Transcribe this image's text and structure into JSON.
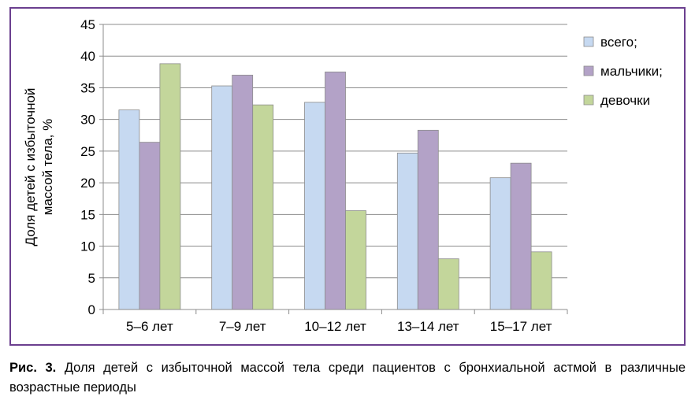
{
  "chart_data": {
    "type": "bar",
    "categories": [
      "5–6 лет",
      "7–9 лет",
      "10–12 лет",
      "13–14 лет",
      "15–17 лет"
    ],
    "series": [
      {
        "name": "всего;",
        "values": [
          31.5,
          35.3,
          32.7,
          24.7,
          20.8
        ],
        "color": "#c6d9f1"
      },
      {
        "name": "мальчики;",
        "values": [
          26.4,
          37.0,
          37.5,
          28.3,
          23.1
        ],
        "color": "#b3a2c7"
      },
      {
        "name": "девочки",
        "values": [
          38.8,
          32.3,
          15.6,
          8.0,
          9.1
        ],
        "color": "#c3d69b"
      }
    ],
    "ylabel": [
      "Доля детей с избыточной",
      "массой тела, %"
    ],
    "ylim": [
      0,
      45
    ],
    "yticks": [
      0,
      5,
      10,
      15,
      20,
      25,
      30,
      35,
      40,
      45
    ],
    "grid": true,
    "legend": "right"
  },
  "caption": {
    "label": "Рис. 3.",
    "text": " Доля детей с избыточной массой тела среди пациентов с бронхиальной астмой в различные возрастные периоды"
  }
}
